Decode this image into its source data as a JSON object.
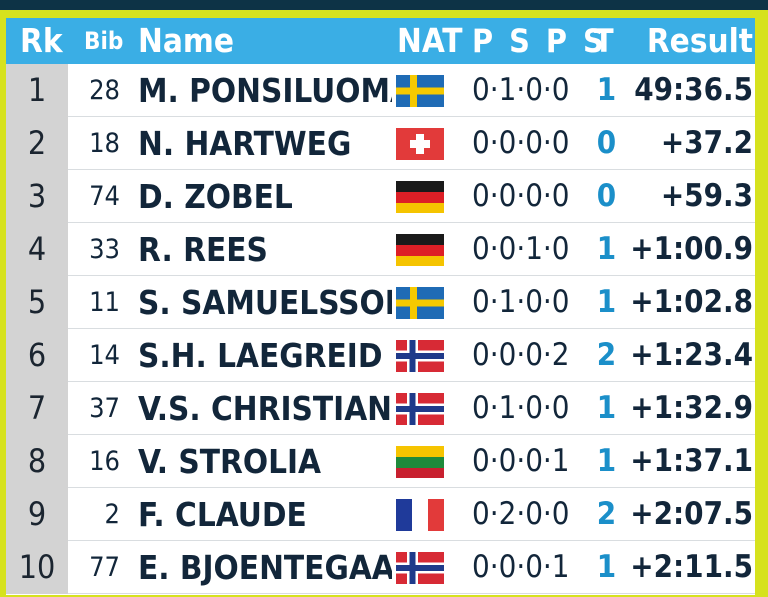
{
  "header": {
    "rank": "Rk",
    "bib": "Bib",
    "name": "Name",
    "nation": "NAT",
    "shooting": "P S P S",
    "total": "T",
    "result": "Result"
  },
  "rows": [
    {
      "rank": "1",
      "bib": "28",
      "name": "M. PONSILUOMA",
      "flag": "sweden-flag-icon",
      "shooting": "0·1·0·0",
      "total": "1",
      "result": "49:36.5"
    },
    {
      "rank": "2",
      "bib": "18",
      "name": "N. HARTWEG",
      "flag": "switzerland-flag-icon",
      "shooting": "0·0·0·0",
      "total": "0",
      "result": "+37.2"
    },
    {
      "rank": "3",
      "bib": "74",
      "name": "D. ZOBEL",
      "flag": "germany-flag-icon",
      "shooting": "0·0·0·0",
      "total": "0",
      "result": "+59.3"
    },
    {
      "rank": "4",
      "bib": "33",
      "name": "R. REES",
      "flag": "germany-flag-icon",
      "shooting": "0·0·1·0",
      "total": "1",
      "result": "+1:00.9"
    },
    {
      "rank": "5",
      "bib": "11",
      "name": "S. SAMUELSSON",
      "flag": "sweden-flag-icon",
      "shooting": "0·1·0·0",
      "total": "1",
      "result": "+1:02.8"
    },
    {
      "rank": "6",
      "bib": "14",
      "name": "S.H. LAEGREID",
      "flag": "norway-flag-icon",
      "shooting": "0·0·0·2",
      "total": "2",
      "result": "+1:23.4"
    },
    {
      "rank": "7",
      "bib": "37",
      "name": "V.S. CHRISTIANS",
      "flag": "norway-flag-icon",
      "shooting": "0·1·0·0",
      "total": "1",
      "result": "+1:32.9"
    },
    {
      "rank": "8",
      "bib": "16",
      "name": "V. STROLIA",
      "flag": "lithuania-flag-icon",
      "shooting": "0·0·0·1",
      "total": "1",
      "result": "+1:37.1"
    },
    {
      "rank": "9",
      "bib": "2",
      "name": "F. CLAUDE",
      "flag": "france-flag-icon",
      "shooting": "0·2·0·0",
      "total": "2",
      "result": "+2:07.5"
    },
    {
      "rank": "10",
      "bib": "77",
      "name": "E. BJOENTEGAAR",
      "flag": "norway-flag-icon",
      "shooting": "0·0·0·1",
      "total": "1",
      "result": "+2:11.5"
    }
  ],
  "colors": {
    "header_bg": "#3aaee5",
    "frame": "#d6e21e",
    "rank_bg": "#d3d3d3",
    "total_text": "#1b8fc9",
    "top_bar": "#0d3346"
  }
}
